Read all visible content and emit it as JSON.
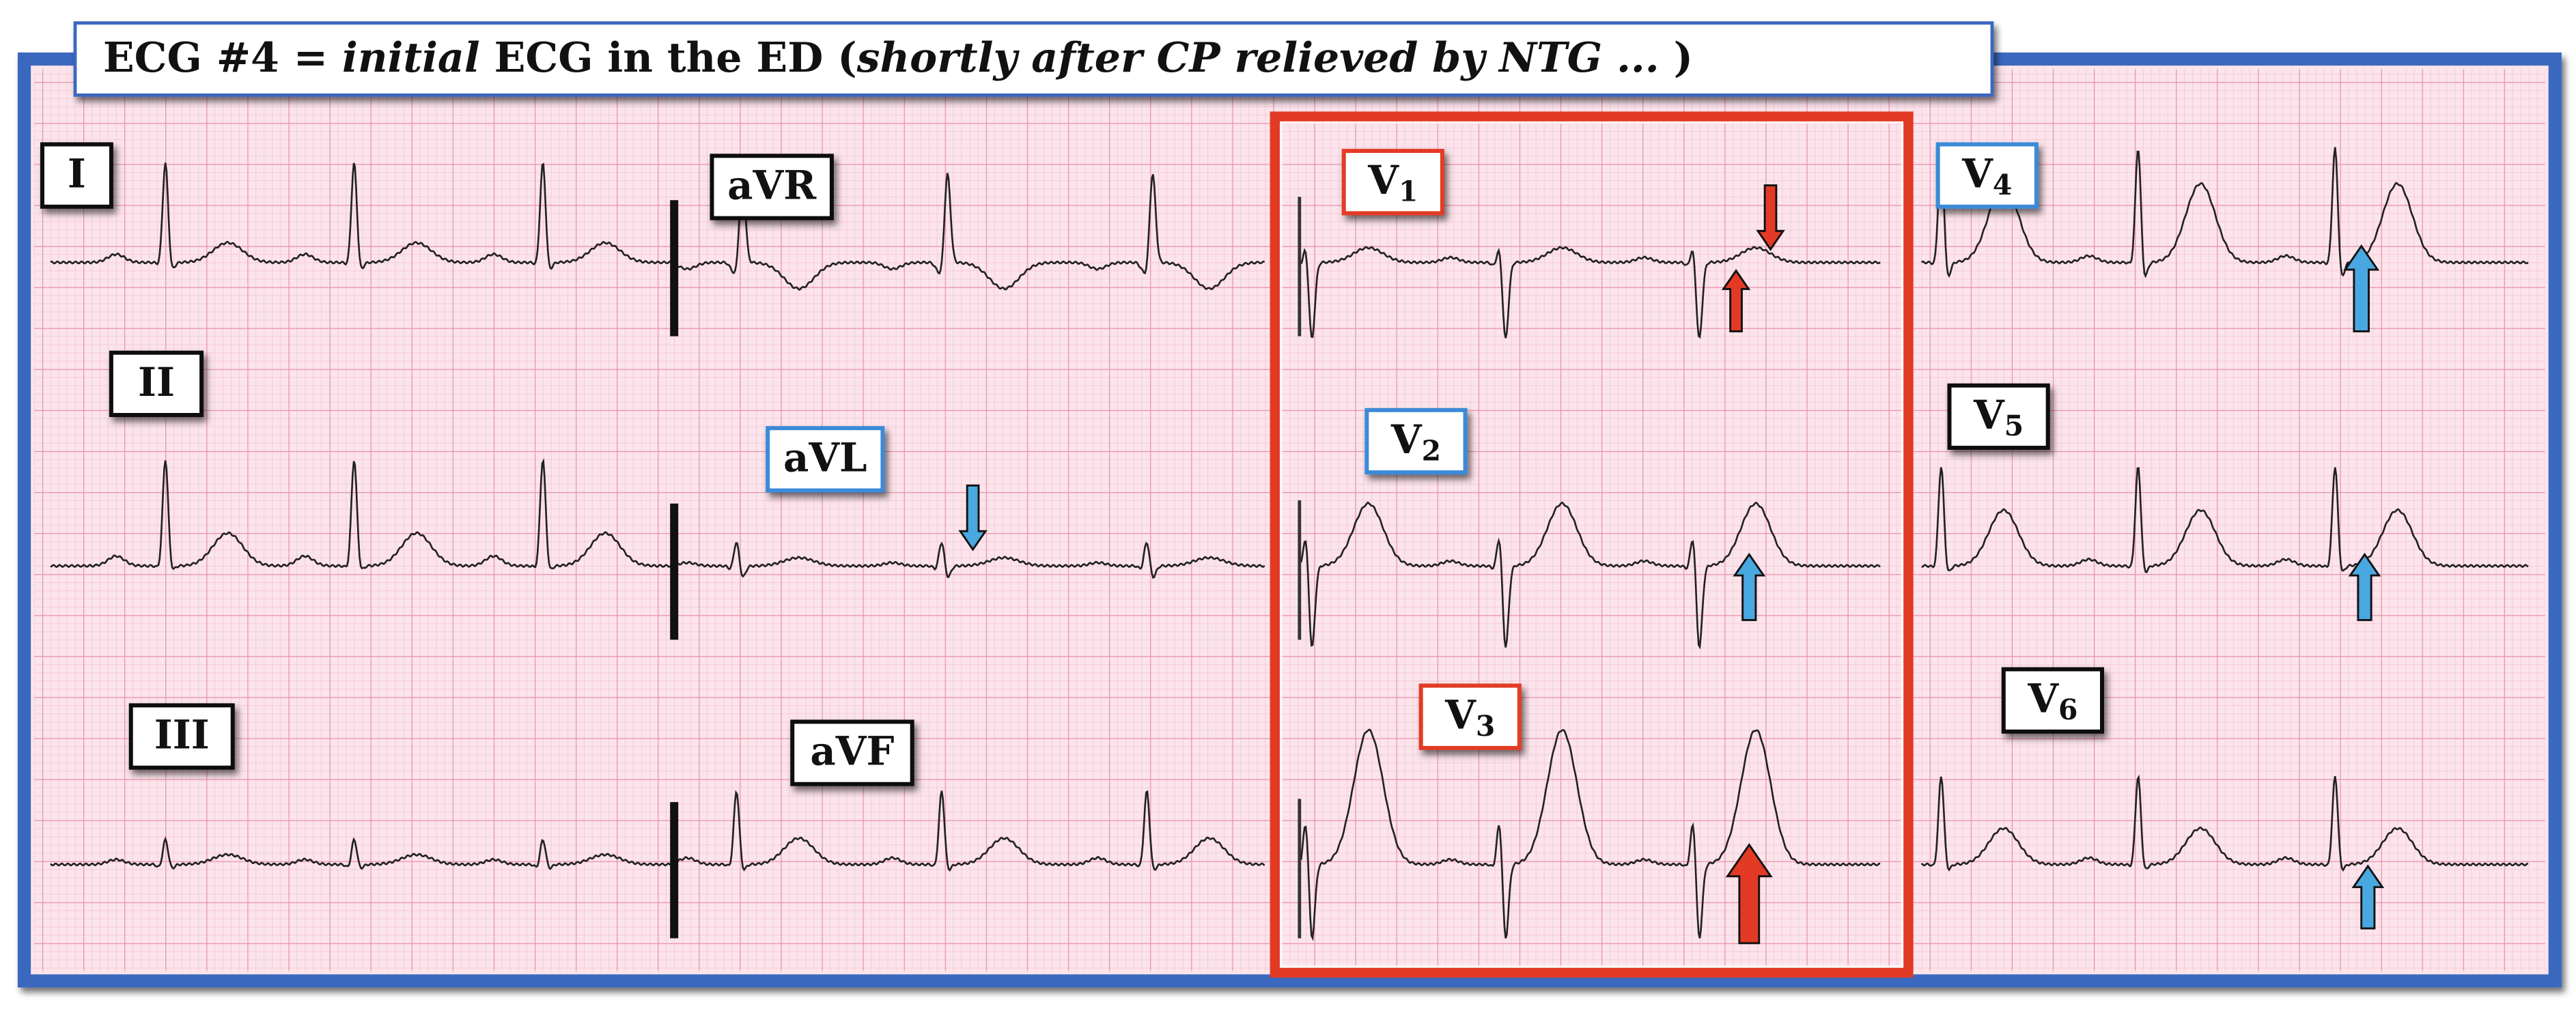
{
  "title": [
    {
      "text": "ECG #4 = ",
      "italic": false
    },
    {
      "text": "initial",
      "italic": true
    },
    {
      "text": " ECG in the ED (",
      "italic": false
    },
    {
      "text": "shortly after CP relieved by NTG ...",
      "italic": true
    },
    {
      "text": " )",
      "italic": false
    }
  ],
  "leads": [
    {
      "label": "I"
    },
    {
      "label": "aVR"
    },
    {
      "label": "V",
      "subscript": "1"
    },
    {
      "label": "V",
      "subscript": "4"
    },
    {
      "label": "II"
    },
    {
      "label": "aVL"
    },
    {
      "label": "V",
      "subscript": "2"
    },
    {
      "label": "V",
      "subscript": "5"
    },
    {
      "label": "III"
    },
    {
      "label": "aVF"
    },
    {
      "label": "V",
      "subscript": "3"
    },
    {
      "label": "V",
      "subscript": "6"
    }
  ]
}
